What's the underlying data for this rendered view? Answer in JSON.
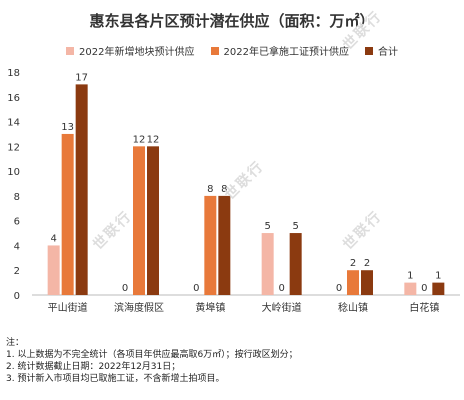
{
  "chart_data": {
    "type": "bar",
    "title": "惠东县各片区预计潜在供应（面积：万㎡）",
    "categories": [
      "平山街道",
      "滨海度假区",
      "黄埠镇",
      "大岭街道",
      "稔山镇",
      "白花镇"
    ],
    "series": [
      {
        "name": "2022年新增地块预计供应",
        "values": [
          4,
          0,
          0,
          5,
          0,
          1
        ],
        "color": "#f4b6a6"
      },
      {
        "name": "2022年已拿施工证预计供应",
        "values": [
          13,
          12,
          8,
          0,
          2,
          0
        ],
        "color": "#e8793a"
      },
      {
        "name": "合计",
        "values": [
          17,
          12,
          8,
          5,
          2,
          1
        ],
        "color": "#8b3a10"
      }
    ],
    "ylim": [
      0,
      18
    ],
    "yticks": [
      0,
      2,
      4,
      6,
      8,
      10,
      12,
      14,
      16,
      18
    ],
    "grid": false,
    "legend_position": "top"
  },
  "watermark_text": "世联行",
  "notes": {
    "heading": "注：",
    "items": [
      "1.   以上数据为不完全统计（各项目年供应最高取6万㎡）；按行政区划分；",
      "2.   统计数据截止日期：2022年12月31日；",
      "3.   预计新入市项目均已取施工证，不含新增土拍项目。"
    ]
  }
}
